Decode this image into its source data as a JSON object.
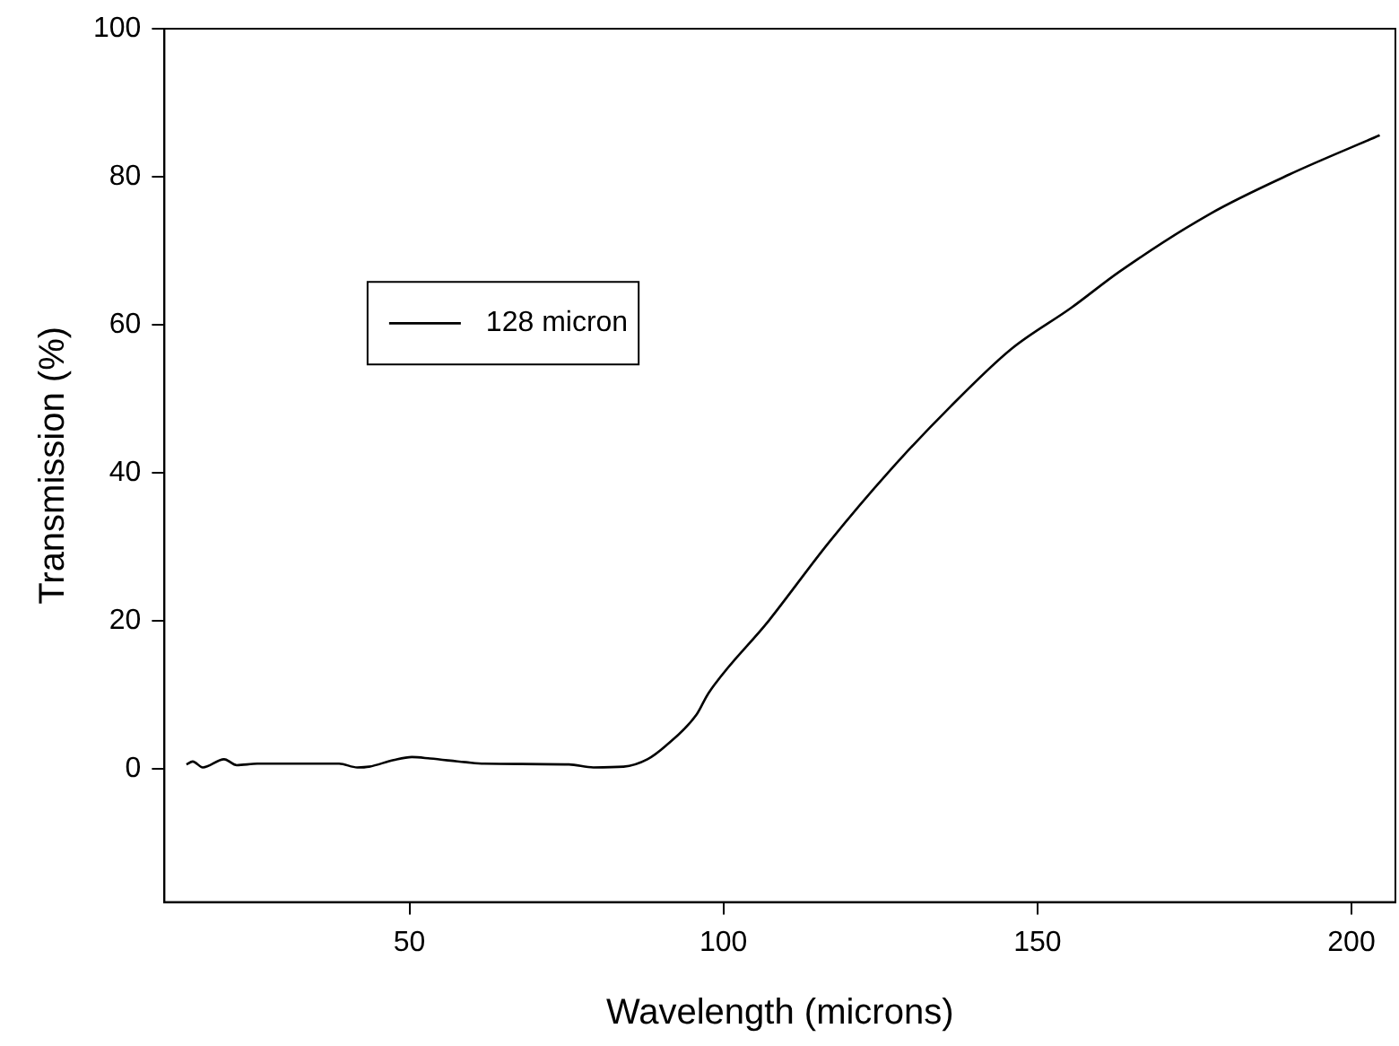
{
  "chart_data": {
    "type": "line",
    "xlabel": "Wavelength (microns)",
    "ylabel": "Transmission (%)",
    "xlim": [
      11,
      207
    ],
    "xticks": [
      50,
      100,
      150,
      200
    ],
    "ylim": [
      -18,
      100
    ],
    "yticks": [
      0,
      20,
      40,
      60,
      80,
      100
    ],
    "grid": false,
    "legend": "top left",
    "marker": "none",
    "line_style": "solid",
    "series": [
      {
        "name": "128 micron",
        "color": "#000000",
        "x": [
          14.5,
          15.5,
          17.1,
          20.5,
          22.5,
          25.8,
          38.8,
          41.7,
          43.6,
          47.5,
          50.4,
          53.3,
          59,
          61.9,
          75.4,
          79.3,
          84.1,
          87.9,
          90.8,
          95.7,
          97.6,
          107.2,
          116.8,
          126.5,
          136.1,
          145.8,
          155.4,
          163.1,
          177.5,
          190.1,
          204.5
        ],
        "values": [
          0.6,
          1.0,
          0.2,
          1.3,
          0.5,
          0.7,
          0.7,
          0.2,
          0.3,
          1.2,
          1.6,
          1.4,
          0.9,
          0.7,
          0.6,
          0.2,
          0.3,
          1.3,
          3.1,
          7.3,
          10.2,
          20.0,
          30.6,
          40.3,
          48.9,
          56.7,
          62.3,
          67.2,
          75,
          80.3,
          85.6
        ]
      }
    ]
  }
}
